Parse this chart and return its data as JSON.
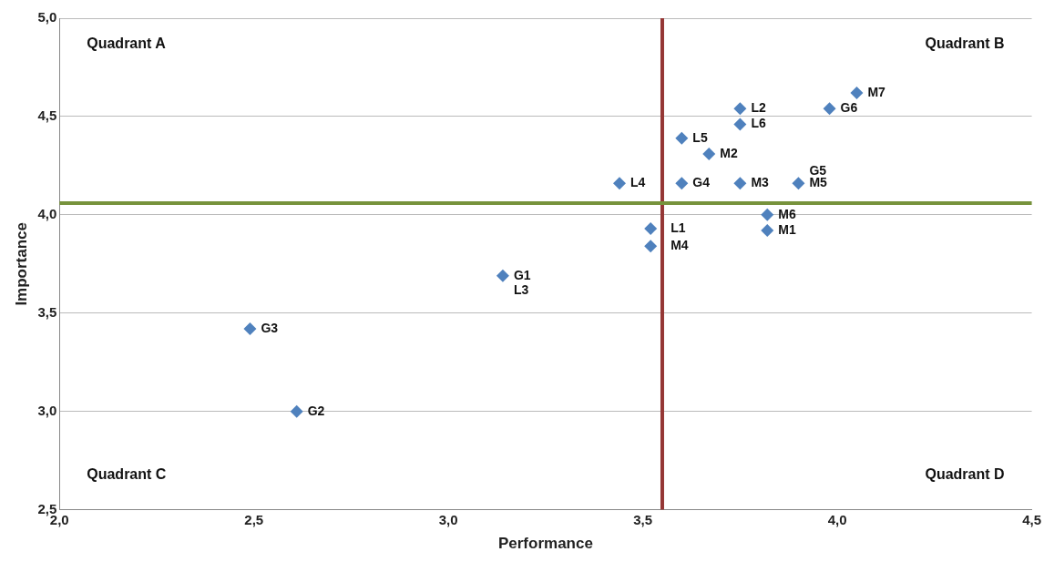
{
  "chart_data": {
    "type": "scatter",
    "xlabel": "Performance",
    "ylabel": "Importance",
    "x": [
      2.49,
      2.61,
      3.14,
      3.44,
      3.6,
      3.75,
      3.9,
      3.52,
      3.52,
      3.82,
      3.82,
      3.6,
      3.67,
      3.75,
      3.75,
      3.98,
      4.05
    ],
    "series": [
      {
        "color": "#4f81bd",
        "values": [
          3.42,
          3.0,
          3.69,
          4.16,
          4.16,
          4.16,
          4.16,
          3.93,
          3.84,
          4.0,
          3.92,
          4.39,
          4.31,
          4.54,
          4.46,
          4.54,
          4.62
        ]
      }
    ],
    "marker": "diamond",
    "legend": false,
    "grid": "y",
    "xlim": [
      2.0,
      4.5
    ],
    "xticks": [
      {
        "value": 2.0,
        "label": "2,0"
      },
      {
        "value": 2.5,
        "label": "2,5"
      },
      {
        "value": 3.0,
        "label": "3,0"
      },
      {
        "value": 3.5,
        "label": "3,5"
      },
      {
        "value": 4.0,
        "label": "4,0"
      },
      {
        "value": 4.5,
        "label": "4,5"
      }
    ],
    "ylim": [
      2.5,
      5.0
    ],
    "yticks": [
      {
        "value": 2.5,
        "label": "2,5"
      },
      {
        "value": 3.0,
        "label": "3,0"
      },
      {
        "value": 3.5,
        "label": "3,5"
      },
      {
        "value": 4.0,
        "label": "4,0"
      },
      {
        "value": 4.5,
        "label": "4,5"
      },
      {
        "value": 5.0,
        "label": "5,0"
      }
    ],
    "ref_lines": [
      {
        "axis": "x",
        "value": 3.55,
        "color": "#953735"
      },
      {
        "axis": "y",
        "value": 4.06,
        "color": "#77933c"
      }
    ],
    "annotations": [
      "Quadrant A",
      "Quadrant B",
      "Quadrant C",
      "Quadrant D",
      {
        "text": "G3",
        "x": 2.49,
        "y": 3.42
      },
      {
        "text": "G2",
        "x": 2.61,
        "y": 3.0
      },
      {
        "text": "G1",
        "x": 3.14,
        "y": 3.69
      },
      {
        "text": "L3",
        "x": 3.14,
        "y": 3.69
      },
      {
        "text": "L4",
        "x": 3.44,
        "y": 4.16
      },
      {
        "text": "G4",
        "x": 3.6,
        "y": 4.16
      },
      {
        "text": "M3",
        "x": 3.75,
        "y": 4.16
      },
      {
        "text": "M5",
        "x": 3.9,
        "y": 4.16
      },
      {
        "text": "G5",
        "x": 3.9,
        "y": 4.16
      },
      {
        "text": "L1",
        "x": 3.52,
        "y": 3.93
      },
      {
        "text": "M4",
        "x": 3.52,
        "y": 3.84
      },
      {
        "text": "M6",
        "x": 3.82,
        "y": 4.0
      },
      {
        "text": "M1",
        "x": 3.82,
        "y": 3.92
      },
      {
        "text": "L5",
        "x": 3.6,
        "y": 4.39
      },
      {
        "text": "M2",
        "x": 3.67,
        "y": 4.31
      },
      {
        "text": "L2",
        "x": 3.75,
        "y": 4.54
      },
      {
        "text": "L6",
        "x": 3.75,
        "y": 4.46
      },
      {
        "text": "G6",
        "x": 3.98,
        "y": 4.54
      },
      {
        "text": "M7",
        "x": 4.05,
        "y": 4.62
      }
    ]
  }
}
